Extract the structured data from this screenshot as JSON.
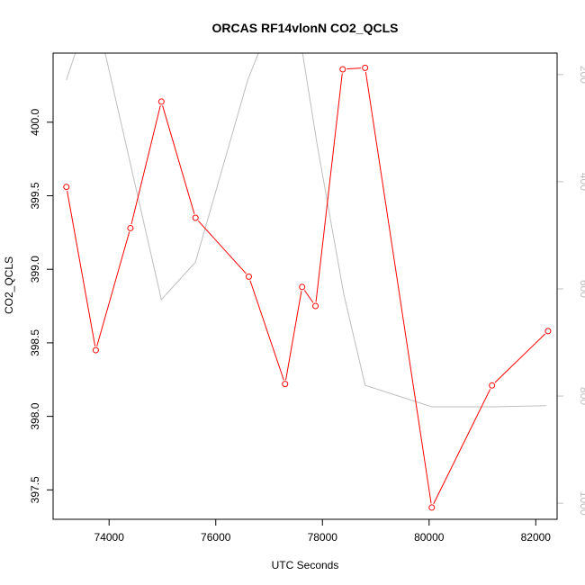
{
  "chart_data": {
    "type": "line",
    "title": "ORCAS RF14vlonN CO2_QCLS",
    "xlabel": "UTC Seconds",
    "ylabel": "CO2_QCLS",
    "xlim": [
      72950,
      82400
    ],
    "ylim": [
      397.3,
      400.47
    ],
    "y2lim": [
      1030,
      160
    ],
    "x_ticks": [
      74000,
      76000,
      78000,
      80000,
      82000
    ],
    "y_ticks": [
      397.5,
      398.0,
      398.5,
      399.0,
      399.5,
      400.0
    ],
    "y2_ticks": [
      200,
      400,
      600,
      800,
      1000
    ],
    "x_tick_labels": [
      "74000",
      "76000",
      "78000",
      "80000",
      "82000"
    ],
    "y_tick_labels": [
      "397.5",
      "398.0",
      "398.5",
      "399.0",
      "399.5",
      "400.0"
    ],
    "y2_tick_labels": [
      "200",
      "400",
      "600",
      "800",
      "1000"
    ],
    "right_axis_reversed": true,
    "grid": false,
    "colors": {
      "co2": "#ff0000",
      "secondary": "#bebebe",
      "axis": "#000000",
      "right_axis": "#bebebe"
    },
    "series": [
      {
        "axis": "left",
        "marker": "open-circle",
        "x": [
          73200,
          73750,
          74400,
          74980,
          75620,
          76620,
          77300,
          77620,
          77870,
          78380,
          78800,
          80050,
          81180,
          82230
        ],
        "y": [
          399.56,
          398.45,
          399.28,
          400.14,
          399.35,
          398.95,
          398.22,
          398.88,
          398.75,
          400.36,
          400.37,
          397.38,
          398.21,
          398.58
        ]
      },
      {
        "axis": "right",
        "marker": "none",
        "x": [
          73200,
          73500,
          73880,
          74980,
          75620,
          76600,
          77000,
          77500,
          77900,
          78400,
          78800,
          80050,
          81200,
          82200
        ],
        "y": [
          210,
          120,
          140,
          620,
          550,
          210,
          110,
          80,
          330,
          610,
          780,
          820,
          820,
          818
        ]
      }
    ]
  }
}
